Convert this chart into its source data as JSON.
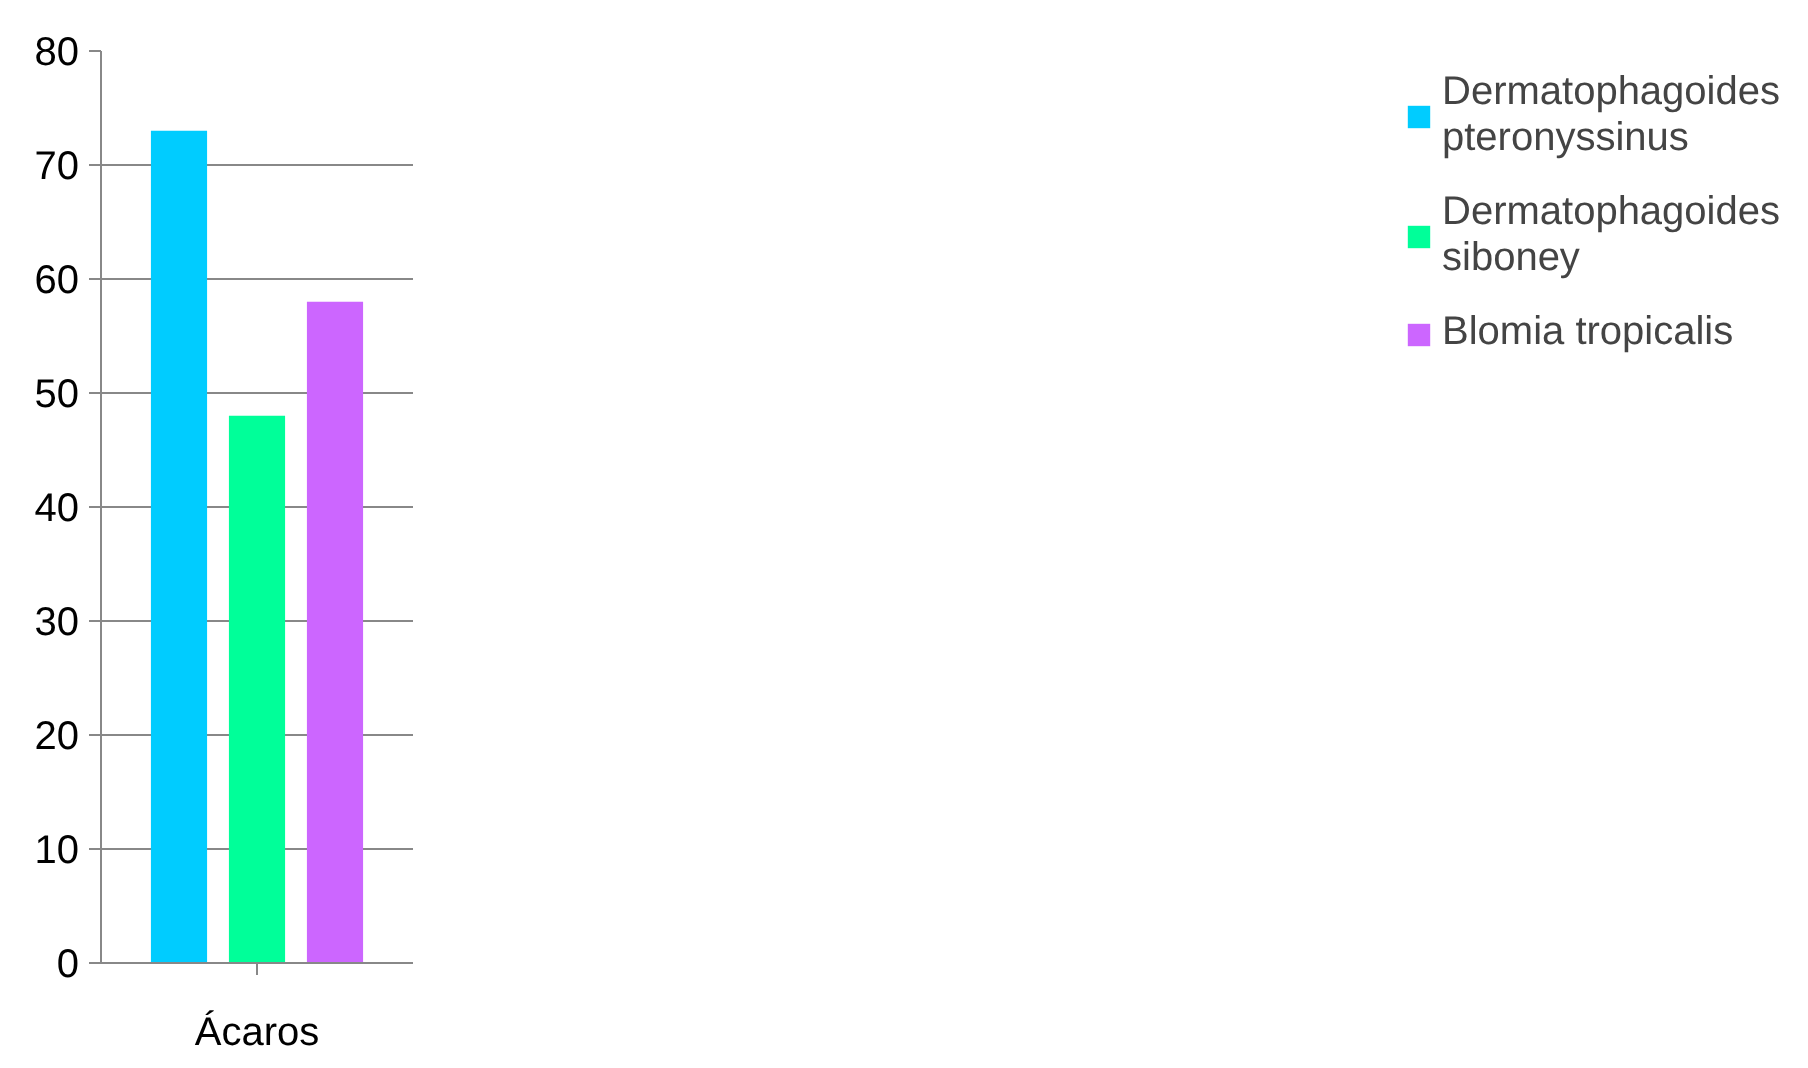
{
  "chart_data": {
    "type": "bar",
    "categories": [
      "Ácaros"
    ],
    "series": [
      {
        "name": "Dermatophagoides pteronyssinus",
        "color": "#00ccff",
        "values": [
          73
        ]
      },
      {
        "name": "Dermatophagoides siboney",
        "color": "#00ff99",
        "values": [
          48
        ]
      },
      {
        "name": "Blomia tropicalis",
        "color": "#cc66ff",
        "values": [
          58
        ]
      }
    ],
    "ylim": [
      0,
      80
    ],
    "yticks": [
      0,
      10,
      20,
      30,
      40,
      50,
      60,
      70,
      80
    ],
    "grid": "y",
    "legend": "right"
  }
}
